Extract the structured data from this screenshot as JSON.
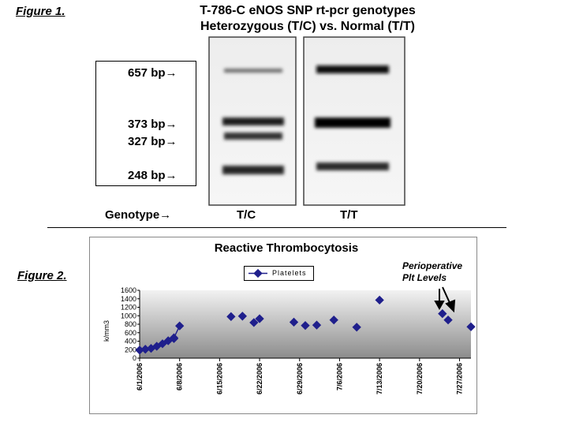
{
  "figure1": {
    "label": "Figure 1",
    "label_suffix": ".",
    "title_line1": "T-786-C eNOS SNP rt-pcr genotypes",
    "title_line2": "Heterozygous (T/C)  vs.  Normal (T/T)",
    "markers": [
      "657 bp→",
      "373 bp→",
      "327 bp→",
      "248 bp→"
    ],
    "genotype_label": "Genotype→",
    "lanes": [
      {
        "name": "T/C",
        "bands": [
          "657 bp",
          "373 bp",
          "327 bp",
          "248 bp"
        ]
      },
      {
        "name": "T/T",
        "bands": [
          "657 bp",
          "373 bp",
          "248 bp"
        ]
      }
    ]
  },
  "figure2": {
    "label": "Figure 2",
    "label_suffix": ".",
    "annotation": [
      "Perioperative",
      "Plt Levels"
    ]
  },
  "chart_data": {
    "type": "line",
    "title": "Reactive Thrombocytosis",
    "xlabel": "",
    "ylabel": "k/mm3",
    "ylim": [
      0,
      1600
    ],
    "yticks": [
      0,
      200,
      400,
      600,
      800,
      1000,
      1200,
      1400,
      1600
    ],
    "xlim": [
      "2006-06-01",
      "2006-07-29"
    ],
    "xticks": [
      "6/1/2006",
      "6/8/2006",
      "6/15/2006",
      "6/22/2006",
      "6/29/2006",
      "7/6/2006",
      "7/13/2006",
      "7/20/2006",
      "7/27/2006"
    ],
    "legend": "top-center",
    "grid": false,
    "colors": {
      "series": "#1f1f8c",
      "plot_bg_top": "#f2f2f2",
      "plot_bg_bottom": "#8c8c8c"
    },
    "series": [
      {
        "name": "Platelets",
        "points": [
          {
            "x": "2006-06-01",
            "y": 190
          },
          {
            "x": "2006-06-02",
            "y": 210
          },
          {
            "x": "2006-06-03",
            "y": 230
          },
          {
            "x": "2006-06-04",
            "y": 280
          },
          {
            "x": "2006-06-05",
            "y": 340
          },
          {
            "x": "2006-06-06",
            "y": 410
          },
          {
            "x": "2006-06-07",
            "y": 460
          },
          {
            "x": "2006-06-07",
            "y": 480
          },
          {
            "x": "2006-06-08",
            "y": 760
          },
          {
            "x": "2006-06-17",
            "y": 980
          },
          {
            "x": "2006-06-19",
            "y": 990
          },
          {
            "x": "2006-06-21",
            "y": 840
          },
          {
            "x": "2006-06-22",
            "y": 930
          },
          {
            "x": "2006-06-28",
            "y": 850
          },
          {
            "x": "2006-06-30",
            "y": 770
          },
          {
            "x": "2006-07-02",
            "y": 780
          },
          {
            "x": "2006-07-05",
            "y": 900
          },
          {
            "x": "2006-07-09",
            "y": 730
          },
          {
            "x": "2006-07-13",
            "y": 1370
          },
          {
            "x": "2006-07-24",
            "y": 1050
          },
          {
            "x": "2006-07-25",
            "y": 900
          },
          {
            "x": "2006-07-29",
            "y": 740
          }
        ]
      }
    ]
  }
}
